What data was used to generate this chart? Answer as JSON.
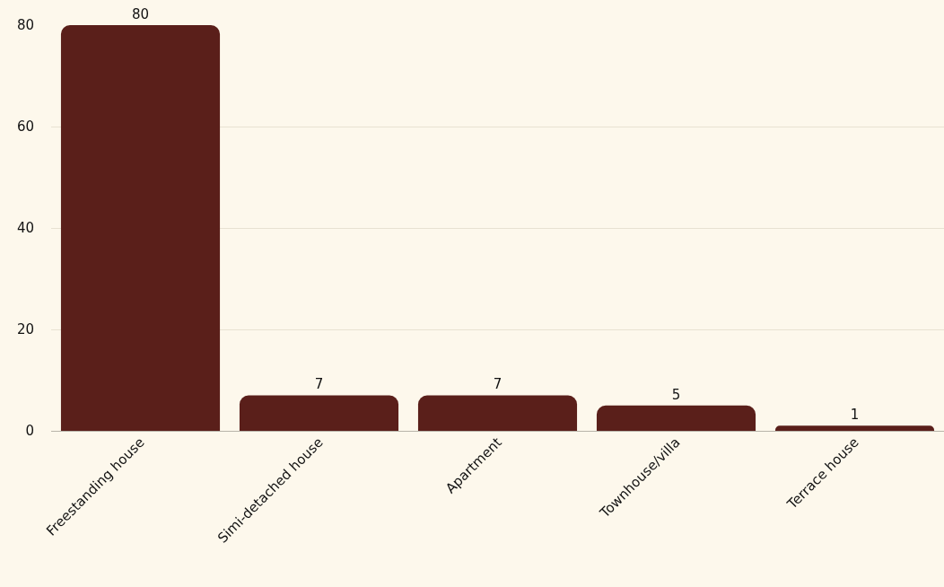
{
  "chart_data": {
    "type": "bar",
    "categories": [
      "Freestanding house",
      "Simi-detached house",
      "Apartment",
      "Townhouse/villa",
      "Terrace house"
    ],
    "values": [
      80,
      7,
      7,
      5,
      1
    ],
    "color": "#5a1f1a",
    "ylim": [
      0,
      80
    ],
    "yticks": [
      0,
      20,
      40,
      60,
      80
    ],
    "grid": "y",
    "data_labels": true
  }
}
